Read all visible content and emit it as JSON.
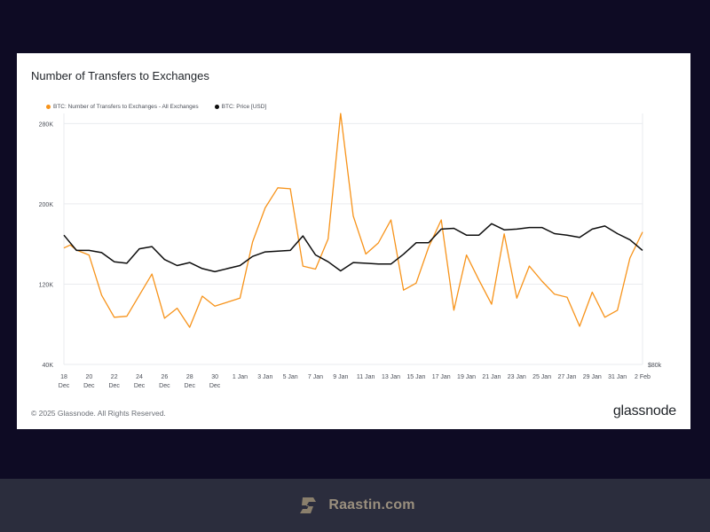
{
  "chart_card": {
    "title": "Number of Transfers to Exchanges",
    "copyright": "© 2025 Glassnode. All Rights Reserved.",
    "brand": "glassnode"
  },
  "footer": {
    "site": "Raastin.com"
  },
  "colors": {
    "transfers": "#f7931a",
    "price": "#0d0d0d",
    "grid": "#e9ebef",
    "axis_text": "#4b4f58"
  },
  "chart_data": {
    "type": "line",
    "title": "Number of Transfers to Exchanges",
    "legend_placement": "top-left",
    "grid": true,
    "x_ticks": [
      {
        "line1": "18",
        "line2": "Dec"
      },
      {
        "line1": "20",
        "line2": "Dec"
      },
      {
        "line1": "22",
        "line2": "Dec"
      },
      {
        "line1": "24",
        "line2": "Dec"
      },
      {
        "line1": "26",
        "line2": "Dec"
      },
      {
        "line1": "28",
        "line2": "Dec"
      },
      {
        "line1": "30",
        "line2": "Dec"
      },
      {
        "line1": "1 Jan",
        "line2": ""
      },
      {
        "line1": "3 Jan",
        "line2": ""
      },
      {
        "line1": "5 Jan",
        "line2": ""
      },
      {
        "line1": "7 Jan",
        "line2": ""
      },
      {
        "line1": "9 Jan",
        "line2": ""
      },
      {
        "line1": "11 Jan",
        "line2": ""
      },
      {
        "line1": "13 Jan",
        "line2": ""
      },
      {
        "line1": "15 Jan",
        "line2": ""
      },
      {
        "line1": "17 Jan",
        "line2": ""
      },
      {
        "line1": "19 Jan",
        "line2": ""
      },
      {
        "line1": "21 Jan",
        "line2": ""
      },
      {
        "line1": "23 Jan",
        "line2": ""
      },
      {
        "line1": "25 Jan",
        "line2": ""
      },
      {
        "line1": "27 Jan",
        "line2": ""
      },
      {
        "line1": "29 Jan",
        "line2": ""
      },
      {
        "line1": "31 Jan",
        "line2": ""
      },
      {
        "line1": "2 Feb",
        "line2": ""
      }
    ],
    "x_range_days": [
      0,
      46
    ],
    "y_left": {
      "ticks": [
        {
          "value": 40000,
          "label": "40K"
        },
        {
          "value": 120000,
          "label": "120K"
        },
        {
          "value": 200000,
          "label": "200K"
        },
        {
          "value": 280000,
          "label": "280K"
        }
      ],
      "ylim": [
        40000,
        290000
      ]
    },
    "y_right": {
      "ticks": [
        {
          "value": 80000,
          "label": "$80k"
        }
      ],
      "ylim": [
        80000,
        113000
      ]
    },
    "series": [
      {
        "name": "BTC: Number of Transfers to Exchanges - All Exchanges",
        "axis": "left",
        "color": "#f7931a",
        "x": [
          0,
          0.5,
          1,
          2,
          3,
          4,
          5,
          6,
          7,
          8,
          9,
          10,
          11,
          12,
          13,
          14,
          15,
          16,
          17,
          18,
          19,
          20,
          21,
          22,
          23,
          24,
          25,
          26,
          27,
          28,
          29,
          30,
          31,
          32,
          33,
          34,
          35,
          36,
          37,
          38,
          39,
          40,
          41,
          42,
          43,
          44,
          45,
          46
        ],
        "values": [
          156000,
          159000,
          154000,
          149000,
          109000,
          87000,
          88000,
          109000,
          130000,
          86000,
          96000,
          77000,
          108000,
          98000,
          102000,
          106000,
          162000,
          196000,
          216000,
          215000,
          138000,
          135000,
          165000,
          290000,
          188000,
          150000,
          161000,
          184000,
          114000,
          121000,
          157000,
          184000,
          94000,
          149000,
          124000,
          100000,
          170000,
          106000,
          138000,
          123000,
          110000,
          107000,
          78000,
          112000,
          87000,
          94000,
          146000,
          172000
        ]
      },
      {
        "name": "BTC: Price [USD]",
        "axis": "right",
        "color": "#0d0d0d",
        "x": [
          0,
          0.5,
          1,
          2,
          3,
          4,
          5,
          6,
          7,
          8,
          9,
          10,
          11,
          12,
          13,
          14,
          15,
          16,
          17,
          18,
          19,
          20,
          21,
          22,
          23,
          24,
          25,
          26,
          27,
          28,
          29,
          30,
          31,
          32,
          33,
          34,
          35,
          36,
          37,
          38,
          39,
          40,
          41,
          42,
          43,
          44,
          45,
          46
        ],
        "values": [
          97000,
          96000,
          95000,
          95000,
          94700,
          93500,
          93300,
          95200,
          95500,
          93800,
          93000,
          93400,
          92600,
          92200,
          92600,
          93000,
          94200,
          94800,
          94900,
          95000,
          96900,
          94400,
          93500,
          92300,
          93400,
          93300,
          93200,
          93200,
          94500,
          96000,
          96000,
          97800,
          97900,
          97000,
          97000,
          98500,
          97700,
          97800,
          98000,
          98000,
          97200,
          97000,
          96700,
          97800,
          98200,
          97200,
          96400,
          95000
        ]
      }
    ]
  }
}
